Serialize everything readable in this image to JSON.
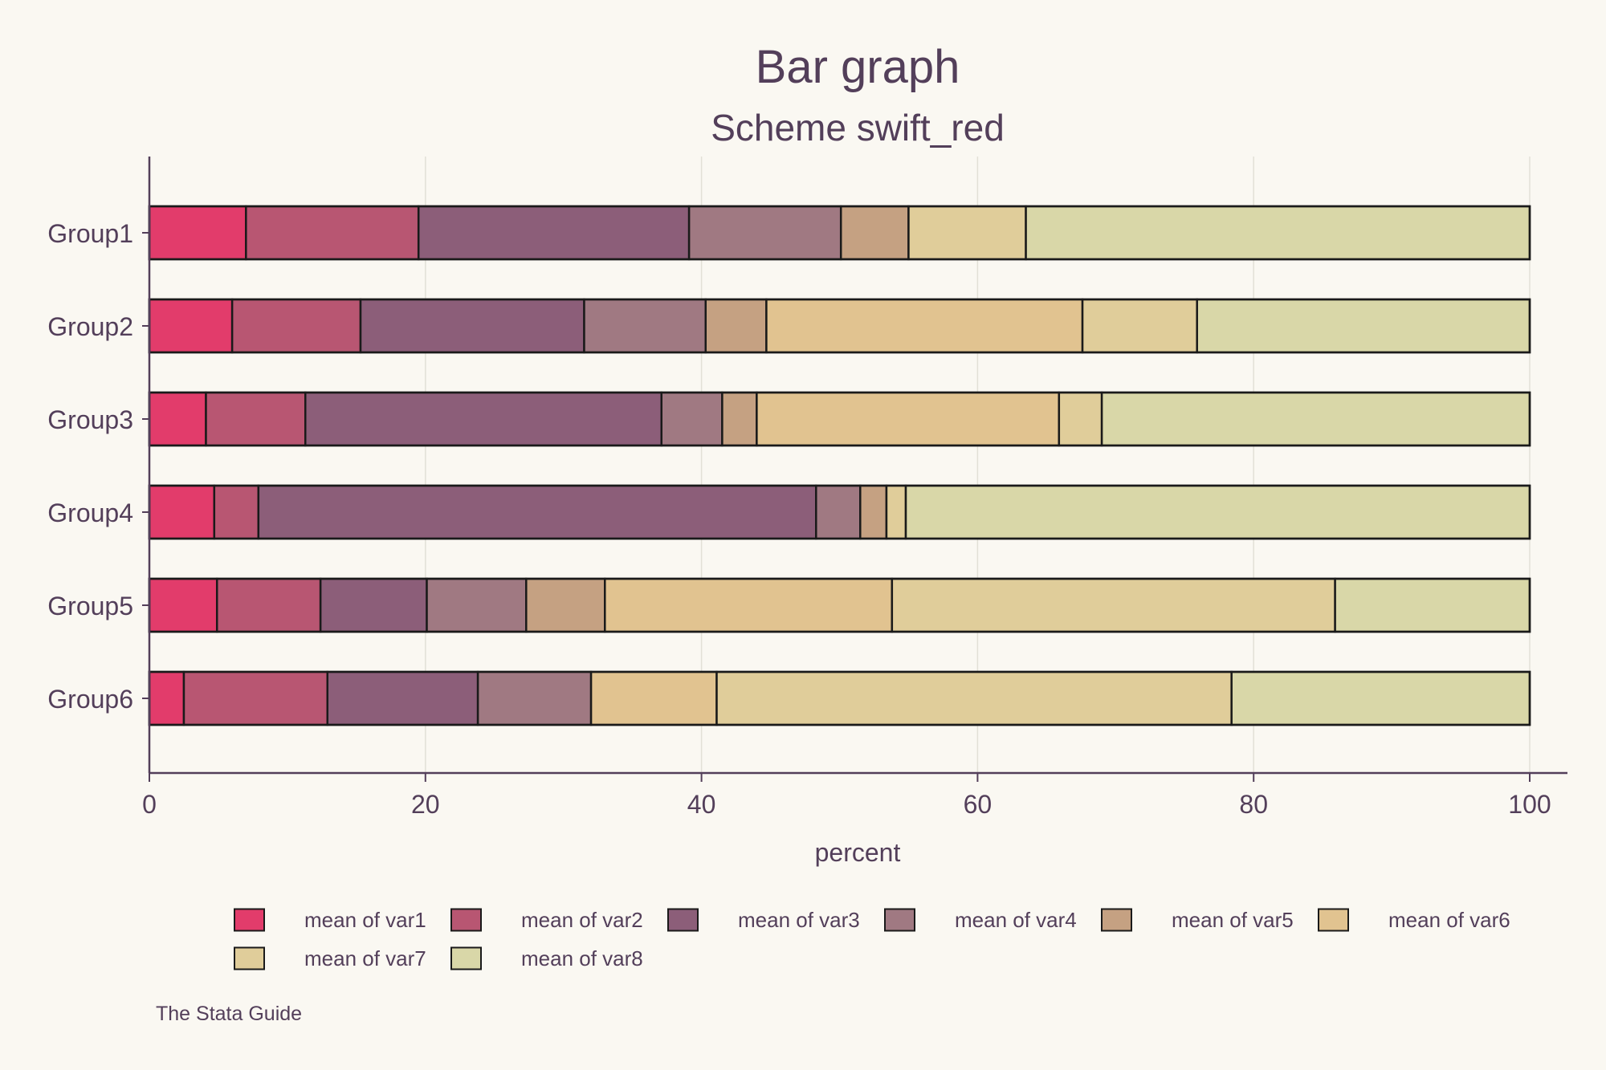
{
  "chart_data": {
    "type": "bar",
    "orientation": "horizontal",
    "stacked": true,
    "title": "Bar graph",
    "subtitle": "Scheme swift_red",
    "xlabel": "percent",
    "ylabel": "",
    "xlim": [
      0,
      100
    ],
    "xticks": [
      "0",
      "20",
      "40",
      "60",
      "80",
      "100"
    ],
    "grid": true,
    "legend_position": "bottom",
    "note": "The Stata Guide",
    "categories": [
      "Group1",
      "Group2",
      "Group3",
      "Group4",
      "Group5",
      "Group6"
    ],
    "series": [
      {
        "name": "mean of var1",
        "color": "#e23c6b",
        "values": [
          7.0,
          6.0,
          4.1,
          4.7,
          4.9,
          2.5
        ]
      },
      {
        "name": "mean of var2",
        "color": "#b85672",
        "values": [
          12.5,
          9.3,
          7.2,
          3.2,
          7.5,
          10.4
        ]
      },
      {
        "name": "mean of var3",
        "color": "#8c5e79",
        "values": [
          19.6,
          16.2,
          25.8,
          40.4,
          7.7,
          10.9
        ]
      },
      {
        "name": "mean of var4",
        "color": "#a07982",
        "values": [
          11.0,
          8.8,
          4.4,
          3.2,
          7.2,
          8.2
        ]
      },
      {
        "name": "mean of var5",
        "color": "#c5a182",
        "values": [
          4.9,
          4.4,
          2.5,
          1.9,
          5.7,
          0.0
        ]
      },
      {
        "name": "mean of var6",
        "color": "#e1c390",
        "values": [
          0.0,
          22.9,
          21.9,
          0.0,
          20.8,
          9.1
        ]
      },
      {
        "name": "mean of var7",
        "color": "#e0cd9a",
        "values": [
          8.5,
          8.3,
          3.1,
          1.4,
          32.1,
          37.3
        ]
      },
      {
        "name": "mean of var8",
        "color": "#d9d7a8",
        "values": [
          36.5,
          24.1,
          31.0,
          45.2,
          14.1,
          21.6
        ]
      }
    ]
  }
}
